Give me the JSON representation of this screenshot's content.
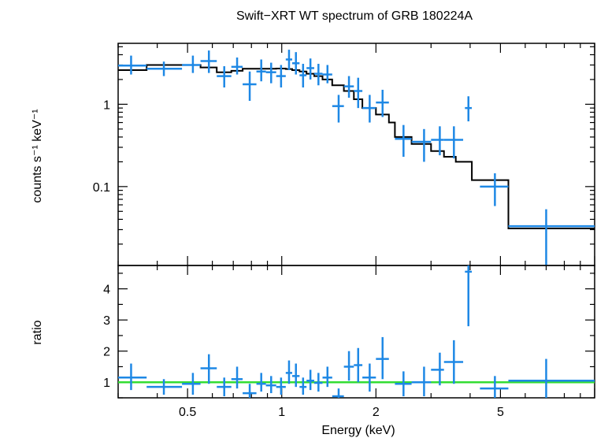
{
  "chart_data": {
    "type": "scatter",
    "title": "Swift−XRT WT spectrum of GRB 180224A",
    "xlabel": "Energy (keV)",
    "xscale": "log",
    "xlim": [
      0.3,
      10
    ],
    "xticks": [
      {
        "value": 0.5,
        "label": "0.5"
      },
      {
        "value": 1,
        "label": "1"
      },
      {
        "value": 2,
        "label": "2"
      },
      {
        "value": 5,
        "label": "5"
      }
    ],
    "colors": {
      "data": "#1e88e5",
      "model": "#000000",
      "unity": "#33dd33"
    },
    "panels": [
      {
        "name": "spectrum",
        "ylabel": "counts s⁻¹ keV⁻¹",
        "yscale": "log",
        "ylim": [
          0.011,
          5.5
        ],
        "yticks": [
          {
            "value": 0.1,
            "label": "0.1"
          },
          {
            "value": 1,
            "label": "1"
          }
        ],
        "points": [
          {
            "x": 0.33,
            "xlo": 0.3,
            "xhi": 0.37,
            "y": 2.95,
            "ylo": 2.3,
            "yhi": 3.9
          },
          {
            "x": 0.42,
            "xlo": 0.37,
            "xhi": 0.48,
            "y": 2.7,
            "ylo": 2.2,
            "yhi": 3.3
          },
          {
            "x": 0.52,
            "xlo": 0.48,
            "xhi": 0.55,
            "y": 3.0,
            "ylo": 2.4,
            "yhi": 3.9
          },
          {
            "x": 0.585,
            "xlo": 0.55,
            "xhi": 0.62,
            "y": 3.35,
            "ylo": 2.4,
            "yhi": 4.5
          },
          {
            "x": 0.655,
            "xlo": 0.62,
            "xhi": 0.69,
            "y": 2.2,
            "ylo": 1.6,
            "yhi": 2.9
          },
          {
            "x": 0.72,
            "xlo": 0.69,
            "xhi": 0.75,
            "y": 2.85,
            "ylo": 2.3,
            "yhi": 3.7
          },
          {
            "x": 0.79,
            "xlo": 0.75,
            "xhi": 0.83,
            "y": 1.75,
            "ylo": 1.1,
            "yhi": 2.5
          },
          {
            "x": 0.86,
            "xlo": 0.83,
            "xhi": 0.89,
            "y": 2.5,
            "ylo": 1.9,
            "yhi": 3.5
          },
          {
            "x": 0.925,
            "xlo": 0.89,
            "xhi": 0.96,
            "y": 2.45,
            "ylo": 1.8,
            "yhi": 3.2
          },
          {
            "x": 0.995,
            "xlo": 0.96,
            "xhi": 1.03,
            "y": 2.2,
            "ylo": 1.6,
            "yhi": 3.0
          },
          {
            "x": 1.055,
            "xlo": 1.03,
            "xhi": 1.08,
            "y": 3.5,
            "ylo": 2.6,
            "yhi": 4.6
          },
          {
            "x": 1.11,
            "xlo": 1.08,
            "xhi": 1.14,
            "y": 3.15,
            "ylo": 2.3,
            "yhi": 4.3
          },
          {
            "x": 1.17,
            "xlo": 1.14,
            "xhi": 1.2,
            "y": 2.25,
            "ylo": 1.6,
            "yhi": 3.1
          },
          {
            "x": 1.235,
            "xlo": 1.2,
            "xhi": 1.27,
            "y": 2.75,
            "ylo": 2.0,
            "yhi": 3.6
          },
          {
            "x": 1.31,
            "xlo": 1.27,
            "xhi": 1.35,
            "y": 2.35,
            "ylo": 1.7,
            "yhi": 3.1
          },
          {
            "x": 1.4,
            "xlo": 1.35,
            "xhi": 1.45,
            "y": 2.3,
            "ylo": 1.8,
            "yhi": 3.0
          },
          {
            "x": 1.52,
            "xlo": 1.45,
            "xhi": 1.58,
            "y": 0.95,
            "ylo": 0.6,
            "yhi": 1.3
          },
          {
            "x": 1.64,
            "xlo": 1.58,
            "xhi": 1.7,
            "y": 1.65,
            "ylo": 1.2,
            "yhi": 2.2
          },
          {
            "x": 1.755,
            "xlo": 1.7,
            "xhi": 1.81,
            "y": 1.45,
            "ylo": 0.9,
            "yhi": 2.1
          },
          {
            "x": 1.91,
            "xlo": 1.81,
            "xhi": 2.0,
            "y": 0.9,
            "ylo": 0.6,
            "yhi": 1.3
          },
          {
            "x": 2.1,
            "xlo": 2.0,
            "xhi": 2.2,
            "y": 1.05,
            "ylo": 0.7,
            "yhi": 1.5
          },
          {
            "x": 2.45,
            "xlo": 2.3,
            "xhi": 2.6,
            "y": 0.38,
            "ylo": 0.23,
            "yhi": 0.56
          },
          {
            "x": 2.85,
            "xlo": 2.6,
            "xhi": 3.0,
            "y": 0.35,
            "ylo": 0.2,
            "yhi": 0.5
          },
          {
            "x": 3.2,
            "xlo": 3.0,
            "xhi": 3.3,
            "y": 0.37,
            "ylo": 0.24,
            "yhi": 0.54
          },
          {
            "x": 3.55,
            "xlo": 3.3,
            "xhi": 3.8,
            "y": 0.37,
            "ylo": 0.22,
            "yhi": 0.54
          },
          {
            "x": 3.95,
            "xlo": 3.85,
            "xhi": 4.05,
            "y": 0.9,
            "ylo": 0.62,
            "yhi": 1.25
          },
          {
            "x": 4.8,
            "xlo": 4.3,
            "xhi": 5.3,
            "y": 0.1,
            "ylo": 0.058,
            "yhi": 0.145
          },
          {
            "x": 7.0,
            "xlo": 5.3,
            "xhi": 10.0,
            "y": 0.033,
            "ylo": 0.011,
            "yhi": 0.053
          }
        ],
        "model": [
          {
            "xlo": 0.3,
            "xhi": 0.37,
            "y": 2.6
          },
          {
            "xlo": 0.37,
            "xhi": 0.48,
            "y": 3.0
          },
          {
            "xlo": 0.48,
            "xhi": 0.55,
            "y": 3.0
          },
          {
            "xlo": 0.55,
            "xhi": 0.62,
            "y": 2.8
          },
          {
            "xlo": 0.62,
            "xhi": 0.69,
            "y": 2.45
          },
          {
            "xlo": 0.69,
            "xhi": 0.75,
            "y": 2.55
          },
          {
            "xlo": 0.75,
            "xhi": 0.83,
            "y": 2.7
          },
          {
            "xlo": 0.83,
            "xhi": 0.89,
            "y": 2.7
          },
          {
            "xlo": 0.89,
            "xhi": 0.96,
            "y": 2.7
          },
          {
            "xlo": 0.96,
            "xhi": 1.03,
            "y": 2.72
          },
          {
            "xlo": 1.03,
            "xhi": 1.08,
            "y": 2.68
          },
          {
            "xlo": 1.08,
            "xhi": 1.14,
            "y": 2.6
          },
          {
            "xlo": 1.14,
            "xhi": 1.2,
            "y": 2.5
          },
          {
            "xlo": 1.2,
            "xhi": 1.27,
            "y": 2.35
          },
          {
            "xlo": 1.27,
            "xhi": 1.35,
            "y": 2.2
          },
          {
            "xlo": 1.35,
            "xhi": 1.45,
            "y": 2.0
          },
          {
            "xlo": 1.45,
            "xhi": 1.58,
            "y": 1.7
          },
          {
            "xlo": 1.58,
            "xhi": 1.7,
            "y": 1.45
          },
          {
            "xlo": 1.7,
            "xhi": 1.81,
            "y": 1.15
          },
          {
            "xlo": 1.81,
            "xhi": 2.0,
            "y": 0.9
          },
          {
            "xlo": 2.0,
            "xhi": 2.2,
            "y": 0.75
          },
          {
            "xlo": 2.2,
            "xhi": 2.3,
            "y": 0.6
          },
          {
            "xlo": 2.3,
            "xhi": 2.6,
            "y": 0.4
          },
          {
            "xlo": 2.6,
            "xhi": 3.0,
            "y": 0.33
          },
          {
            "xlo": 3.0,
            "xhi": 3.3,
            "y": 0.27
          },
          {
            "xlo": 3.3,
            "xhi": 3.6,
            "y": 0.23
          },
          {
            "xlo": 3.6,
            "xhi": 4.05,
            "y": 0.2
          },
          {
            "xlo": 4.05,
            "xhi": 5.3,
            "y": 0.12
          },
          {
            "xlo": 5.3,
            "xhi": 10.0,
            "y": 0.031
          }
        ]
      },
      {
        "name": "ratio",
        "ylabel": "ratio",
        "yscale": "linear",
        "ylim": [
          0.5,
          4.75
        ],
        "yticks": [
          {
            "value": 1,
            "label": "1"
          },
          {
            "value": 2,
            "label": "2"
          },
          {
            "value": 3,
            "label": "3"
          },
          {
            "value": 4,
            "label": "4"
          }
        ],
        "reference_line": 1.0,
        "points": [
          {
            "x": 0.33,
            "xlo": 0.3,
            "xhi": 0.37,
            "y": 1.15,
            "ylo": 0.75,
            "yhi": 1.6
          },
          {
            "x": 0.42,
            "xlo": 0.37,
            "xhi": 0.48,
            "y": 0.85,
            "ylo": 0.6,
            "yhi": 1.1
          },
          {
            "x": 0.52,
            "xlo": 0.48,
            "xhi": 0.55,
            "y": 0.95,
            "ylo": 0.6,
            "yhi": 1.3
          },
          {
            "x": 0.585,
            "xlo": 0.55,
            "xhi": 0.62,
            "y": 1.45,
            "ylo": 0.95,
            "yhi": 1.9
          },
          {
            "x": 0.655,
            "xlo": 0.62,
            "xhi": 0.69,
            "y": 0.85,
            "ylo": 0.55,
            "yhi": 1.15
          },
          {
            "x": 0.72,
            "xlo": 0.69,
            "xhi": 0.75,
            "y": 1.1,
            "ylo": 0.8,
            "yhi": 1.5
          },
          {
            "x": 0.79,
            "xlo": 0.75,
            "xhi": 0.83,
            "y": 0.65,
            "ylo": 0.4,
            "yhi": 0.95
          },
          {
            "x": 0.86,
            "xlo": 0.83,
            "xhi": 0.89,
            "y": 0.95,
            "ylo": 0.7,
            "yhi": 1.3
          },
          {
            "x": 0.925,
            "xlo": 0.89,
            "xhi": 0.96,
            "y": 0.9,
            "ylo": 0.65,
            "yhi": 1.2
          },
          {
            "x": 0.995,
            "xlo": 0.96,
            "xhi": 1.03,
            "y": 0.85,
            "ylo": 0.6,
            "yhi": 1.15
          },
          {
            "x": 1.055,
            "xlo": 1.03,
            "xhi": 1.08,
            "y": 1.3,
            "ylo": 0.95,
            "yhi": 1.7
          },
          {
            "x": 1.11,
            "xlo": 1.08,
            "xhi": 1.14,
            "y": 1.2,
            "ylo": 0.85,
            "yhi": 1.6
          },
          {
            "x": 1.17,
            "xlo": 1.14,
            "xhi": 1.2,
            "y": 0.85,
            "ylo": 0.6,
            "yhi": 1.15
          },
          {
            "x": 1.235,
            "xlo": 1.2,
            "xhi": 1.27,
            "y": 1.05,
            "ylo": 0.75,
            "yhi": 1.4
          },
          {
            "x": 1.31,
            "xlo": 1.27,
            "xhi": 1.35,
            "y": 0.98,
            "ylo": 0.7,
            "yhi": 1.3
          },
          {
            "x": 1.4,
            "xlo": 1.35,
            "xhi": 1.45,
            "y": 1.15,
            "ylo": 0.85,
            "yhi": 1.5
          },
          {
            "x": 1.52,
            "xlo": 1.45,
            "xhi": 1.58,
            "y": 0.55,
            "ylo": 0.35,
            "yhi": 0.8
          },
          {
            "x": 1.64,
            "xlo": 1.58,
            "xhi": 1.7,
            "y": 1.5,
            "ylo": 1.05,
            "yhi": 2.0
          },
          {
            "x": 1.755,
            "xlo": 1.7,
            "xhi": 1.81,
            "y": 1.55,
            "ylo": 1.0,
            "yhi": 2.1
          },
          {
            "x": 1.91,
            "xlo": 1.81,
            "xhi": 2.0,
            "y": 1.15,
            "ylo": 0.7,
            "yhi": 1.6
          },
          {
            "x": 2.1,
            "xlo": 2.0,
            "xhi": 2.2,
            "y": 1.75,
            "ylo": 1.1,
            "yhi": 2.45
          },
          {
            "x": 2.45,
            "xlo": 2.3,
            "xhi": 2.6,
            "y": 0.95,
            "ylo": 0.55,
            "yhi": 1.35
          },
          {
            "x": 2.85,
            "xlo": 2.6,
            "xhi": 3.0,
            "y": 1.0,
            "ylo": 0.55,
            "yhi": 1.5
          },
          {
            "x": 3.2,
            "xlo": 3.0,
            "xhi": 3.3,
            "y": 1.4,
            "ylo": 0.9,
            "yhi": 1.95
          },
          {
            "x": 3.55,
            "xlo": 3.3,
            "xhi": 3.8,
            "y": 1.65,
            "ylo": 0.95,
            "yhi": 2.35
          },
          {
            "x": 3.95,
            "xlo": 3.85,
            "xhi": 4.05,
            "y": 4.55,
            "ylo": 2.8,
            "yhi": 4.75
          },
          {
            "x": 4.8,
            "xlo": 4.3,
            "xhi": 5.3,
            "y": 0.8,
            "ylo": 0.5,
            "yhi": 1.2
          },
          {
            "x": 7.0,
            "xlo": 5.3,
            "xhi": 10.0,
            "y": 1.05,
            "ylo": 0.5,
            "yhi": 1.75
          }
        ]
      }
    ]
  }
}
